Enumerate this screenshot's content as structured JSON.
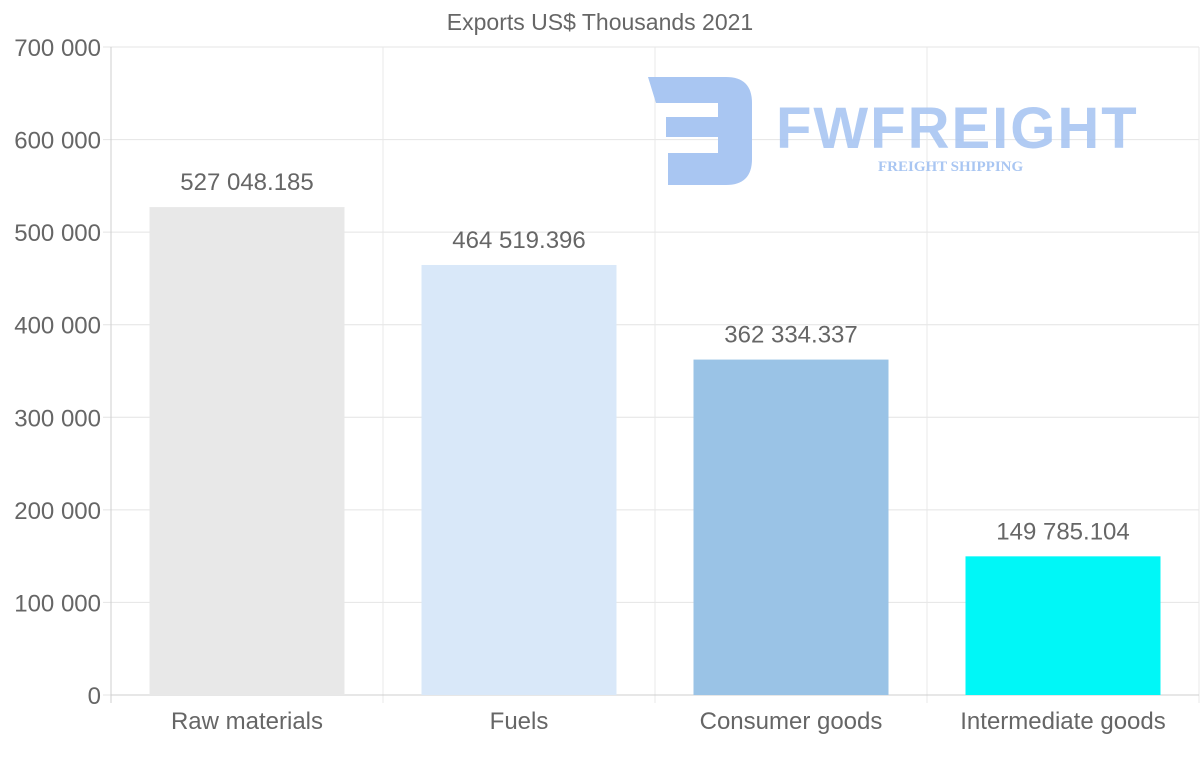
{
  "chart_data": {
    "type": "bar",
    "title": "Exports US$ Thousands 2021",
    "categories": [
      "Raw materials",
      "Fuels",
      "Consumer goods",
      "Intermediate goods"
    ],
    "values": [
      527048.185,
      464519.396,
      362334.337,
      149785.104
    ],
    "value_labels": [
      "527 048.185",
      "464 519.396",
      "362 334.337",
      "149 785.104"
    ],
    "colors": [
      "#e8e8e8",
      "#d9e8f9",
      "#9ac3e6",
      "#00f7f7"
    ],
    "ylim": [
      0,
      700000
    ],
    "yticks": [
      0,
      100000,
      200000,
      300000,
      400000,
      500000,
      600000,
      700000
    ],
    "ytick_labels": [
      "0",
      "100 000",
      "200 000",
      "300 000",
      "400 000",
      "500 000",
      "600 000",
      "700 000"
    ],
    "xlabel": "",
    "ylabel": "",
    "grid": true
  },
  "watermark": {
    "brand": "FWFREIGHT",
    "tagline": "FREIGHT SHIPPING",
    "color": "#a9c6f2"
  }
}
